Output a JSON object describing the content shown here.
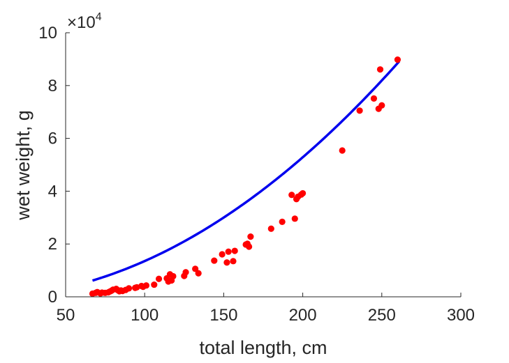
{
  "chart_data": {
    "type": "scatter",
    "xlabel": "total length, cm",
    "ylabel": "wet weight, g",
    "xlim": [
      50,
      300
    ],
    "ylim": [
      0,
      100000
    ],
    "xticks": [
      "50",
      "100",
      "150",
      "200",
      "250",
      "300"
    ],
    "yticks": [
      "0",
      "2",
      "4",
      "6",
      "8",
      "10"
    ],
    "y_exponent": {
      "prefix": "×10",
      "power": "4"
    },
    "grid": false,
    "colors": {
      "points": "#ff0000",
      "fit": "#0000ee",
      "axis": "#262626"
    },
    "series": [
      {
        "type": "scatter",
        "points": [
          [
            67,
            1200
          ],
          [
            69,
            1500
          ],
          [
            70,
            1800
          ],
          [
            72,
            1300
          ],
          [
            73,
            1600
          ],
          [
            75,
            1500
          ],
          [
            77,
            1700
          ],
          [
            78,
            2000
          ],
          [
            79,
            2300
          ],
          [
            80,
            2700
          ],
          [
            82,
            3000
          ],
          [
            83,
            2500
          ],
          [
            84,
            2100
          ],
          [
            85,
            2400
          ],
          [
            86,
            2200
          ],
          [
            88,
            2600
          ],
          [
            90,
            3200
          ],
          [
            94,
            3400
          ],
          [
            95,
            3600
          ],
          [
            98,
            4100
          ],
          [
            99,
            3800
          ],
          [
            101,
            4300
          ],
          [
            106,
            4600
          ],
          [
            109,
            6800
          ],
          [
            114,
            7000
          ],
          [
            115,
            5800
          ],
          [
            116,
            8500
          ],
          [
            117,
            6200
          ],
          [
            118,
            7800
          ],
          [
            125,
            7900
          ],
          [
            126,
            9300
          ],
          [
            132,
            10600
          ],
          [
            134,
            8900
          ],
          [
            144,
            13700
          ],
          [
            149,
            16100
          ],
          [
            152,
            13000
          ],
          [
            153,
            17100
          ],
          [
            156,
            13500
          ],
          [
            157,
            17400
          ],
          [
            164,
            19800
          ],
          [
            165,
            20100
          ],
          [
            166,
            19000
          ],
          [
            167,
            22800
          ],
          [
            180,
            25800
          ],
          [
            187,
            28400
          ],
          [
            193,
            38600
          ],
          [
            195,
            29600
          ],
          [
            196,
            37000
          ],
          [
            197,
            37900
          ],
          [
            199,
            38700
          ],
          [
            200,
            39200
          ],
          [
            225,
            55400
          ],
          [
            236,
            70500
          ],
          [
            245,
            75100
          ],
          [
            248,
            71200
          ],
          [
            249,
            86100
          ],
          [
            250,
            72500
          ],
          [
            260,
            89800
          ]
        ]
      },
      {
        "type": "line",
        "fit": {
          "x_start": 67,
          "x_end": 261,
          "a": 1.59,
          "b": 1.965
        }
      }
    ]
  }
}
